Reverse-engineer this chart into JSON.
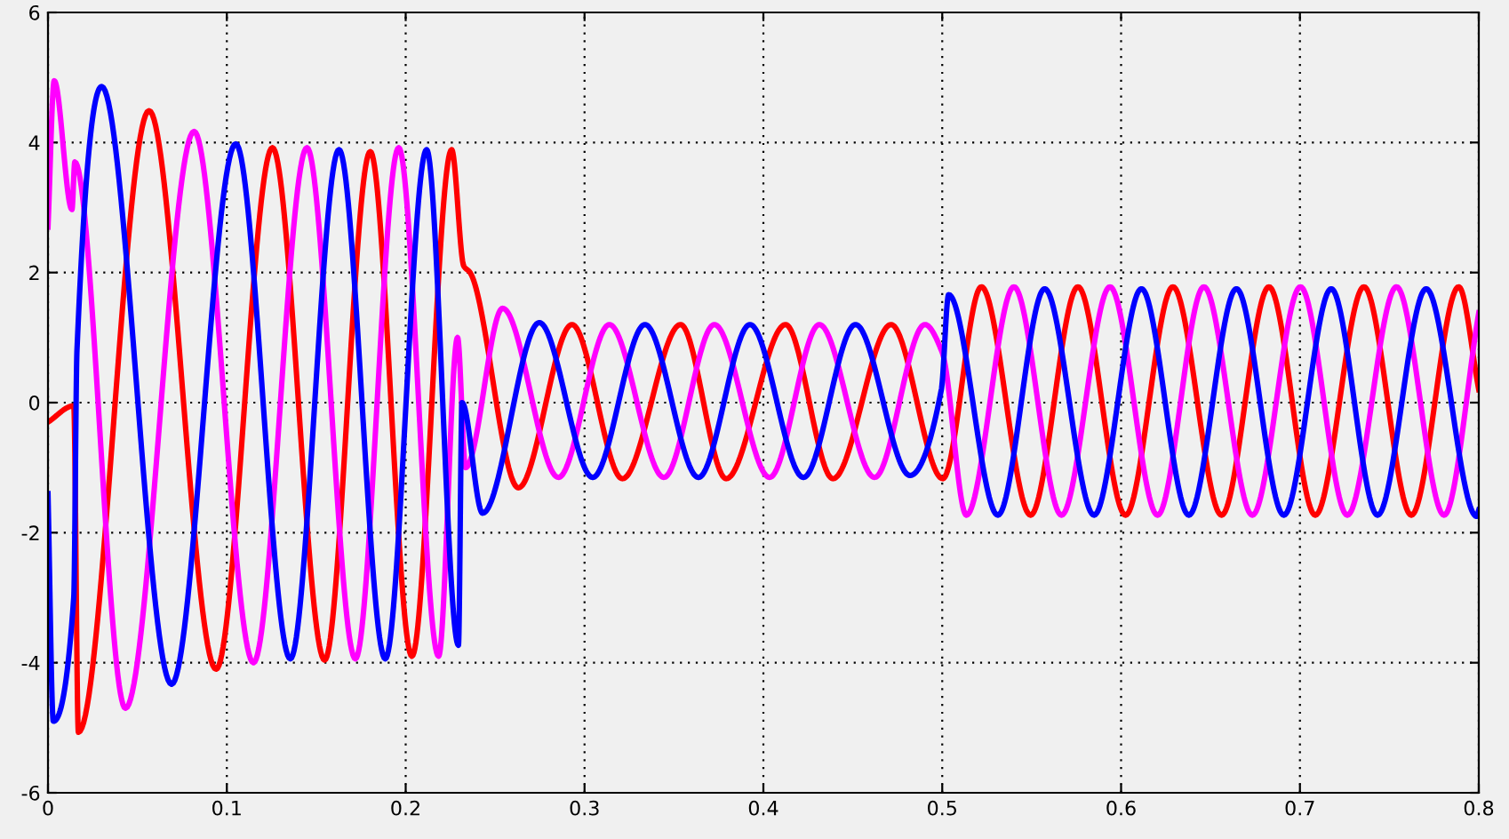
{
  "chart_data": {
    "type": "line",
    "xlim": [
      0,
      0.8
    ],
    "ylim": [
      -6,
      6
    ],
    "xticks": [
      0,
      0.1,
      0.2,
      0.3,
      0.4,
      0.5,
      0.6,
      0.7,
      0.8
    ],
    "yticks": [
      -6,
      -4,
      -2,
      0,
      2,
      4,
      6
    ],
    "grid": true,
    "marker": "none",
    "line_style": "solid",
    "series": [
      {
        "color": "#ff0000",
        "x": [
          0,
          0.0144,
          0.017,
          0.0565,
          0.094,
          0.1255,
          0.1547,
          0.1802,
          0.2035,
          0.2257,
          0.2325,
          0.236,
          0.263,
          0.293,
          0.3212,
          0.3537,
          0.3792,
          0.4124,
          0.4389,
          0.4714,
          0.5003,
          0.5219,
          0.5494,
          0.5759,
          0.6025,
          0.629,
          0.6562,
          0.6827,
          0.7086,
          0.7358,
          0.7623,
          0.7888,
          0.8
        ],
        "values": [
          -0.3,
          -0.05,
          -5.07,
          4.49,
          -4.1,
          3.92,
          -3.96,
          3.86,
          -3.9,
          3.89,
          2.1,
          2.0,
          -1.31,
          1.2,
          -1.17,
          1.2,
          -1.17,
          1.2,
          -1.17,
          1.2,
          -1.17,
          1.78,
          -1.73,
          1.78,
          -1.73,
          1.78,
          -1.73,
          1.78,
          -1.73,
          1.78,
          -1.73,
          1.78,
          0.2
        ]
      },
      {
        "color": "#ff00ff",
        "x": [
          0,
          0.0035,
          0.0134,
          0.015,
          0.0433,
          0.0817,
          0.1149,
          0.1448,
          0.1719,
          0.1961,
          0.2184,
          0.229,
          0.2335,
          0.2542,
          0.2854,
          0.3139,
          0.3444,
          0.3726,
          0.4035,
          0.4313,
          0.4622,
          0.4903,
          0.5,
          0.5135,
          0.5401,
          0.5667,
          0.5938,
          0.6204,
          0.6463,
          0.6734,
          0.7003,
          0.7265,
          0.754,
          0.7806,
          0.8
        ],
        "values": [
          2.7,
          4.95,
          2.97,
          3.7,
          -4.7,
          4.17,
          -4.0,
          3.92,
          -3.94,
          3.92,
          -3.9,
          1.0,
          -1.0,
          1.45,
          -1.15,
          1.2,
          -1.15,
          1.2,
          -1.15,
          1.2,
          -1.15,
          1.2,
          0.77,
          -1.73,
          1.78,
          -1.73,
          1.78,
          -1.73,
          1.78,
          -1.73,
          1.78,
          -1.73,
          1.78,
          -1.73,
          1.38
        ]
      },
      {
        "color": "#0000ff",
        "x": [
          0,
          0.003,
          0.0144,
          0.0162,
          0.03,
          0.0691,
          0.105,
          0.1355,
          0.1627,
          0.1886,
          0.2117,
          0.2295,
          0.2315,
          0.243,
          0.2747,
          0.3046,
          0.3338,
          0.3637,
          0.3925,
          0.4224,
          0.4515,
          0.482,
          0.4995,
          0.5036,
          0.5311,
          0.5573,
          0.5849,
          0.6114,
          0.6379,
          0.6645,
          0.691,
          0.7175,
          0.7434,
          0.7706,
          0.7988,
          0.8
        ],
        "values": [
          -1.4,
          -4.9,
          -3.0,
          0.8,
          4.86,
          -4.33,
          3.98,
          -3.94,
          3.89,
          -3.94,
          3.89,
          -3.73,
          0.0,
          -1.7,
          1.23,
          -1.15,
          1.2,
          -1.15,
          1.2,
          -1.15,
          1.2,
          -1.12,
          0.2,
          1.66,
          -1.73,
          1.75,
          -1.73,
          1.75,
          -1.73,
          1.75,
          -1.73,
          1.75,
          -1.73,
          1.75,
          -1.75,
          -1.65
        ]
      }
    ]
  }
}
